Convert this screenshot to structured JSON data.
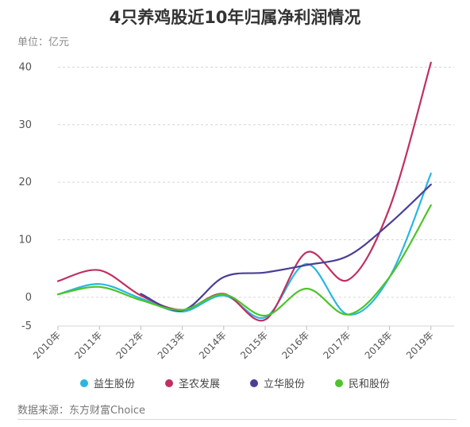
{
  "page": {
    "title": "4只养鸡股近10年归属净利润情况",
    "unit": "单位：亿元",
    "source": "数据来源：东方财富Choice"
  },
  "chart_data": {
    "type": "line",
    "title": "4只养鸡股近10年归属净利润情况",
    "xlabel": "",
    "ylabel": "单位：亿元",
    "categories": [
      "2010年",
      "2011年",
      "2012年",
      "2013年",
      "2014年",
      "2015年",
      "2016年",
      "2017年",
      "2018年",
      "2019年"
    ],
    "y_ticks": [
      "-5",
      "0",
      "10",
      "20",
      "30",
      "40"
    ],
    "ylim": [
      -5,
      42
    ],
    "grid": true,
    "legend": "bottom",
    "series": [
      {
        "name": "益生股份",
        "color": "#29b6e0",
        "values": [
          0.5,
          2.3,
          -0.2,
          -2.5,
          0.3,
          -3.5,
          5.8,
          -3.0,
          3.5,
          21.5
        ]
      },
      {
        "name": "圣农发展",
        "color": "#c0305e",
        "values": [
          2.8,
          4.7,
          0.3,
          -2.2,
          0.6,
          -3.9,
          7.8,
          3.0,
          15.5,
          40.8
        ]
      },
      {
        "name": "立华股份",
        "color": "#4a3f96",
        "values": [
          null,
          null,
          0.6,
          -2.3,
          3.5,
          4.3,
          5.6,
          7.2,
          12.8,
          19.6
        ]
      },
      {
        "name": "民和股份",
        "color": "#4cc42a",
        "values": [
          0.5,
          1.8,
          -0.5,
          -2.2,
          0.5,
          -3.2,
          1.5,
          -3.0,
          3.5,
          16.0
        ]
      }
    ]
  }
}
